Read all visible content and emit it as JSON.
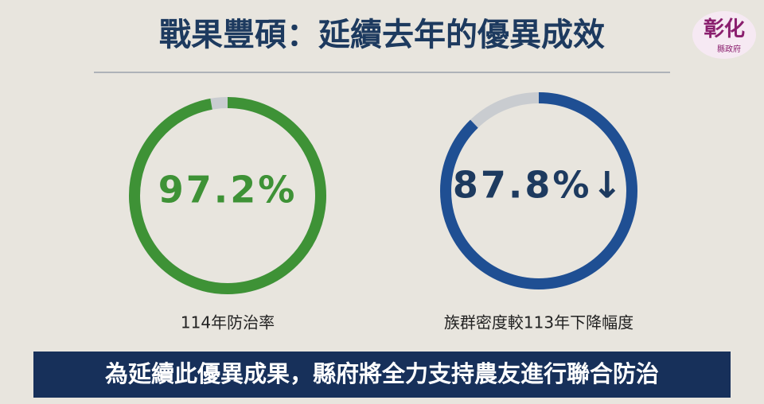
{
  "header": {
    "title": "戰果豐碩：延續去年的優異成效",
    "logo": {
      "name": "彰化",
      "sub": "縣政府"
    }
  },
  "gauges": [
    {
      "value": 97.2,
      "value_label": "97.2%",
      "caption": "114年防治率",
      "color": "#3e9236"
    },
    {
      "value": 87.8,
      "value_label": "87.8%↓",
      "caption": "族群密度較113年下降幅度",
      "color": "#1f4f93"
    }
  ],
  "banner": {
    "text": "為延續此優異成果，縣府將全力支持農友進行聯合防治"
  }
}
